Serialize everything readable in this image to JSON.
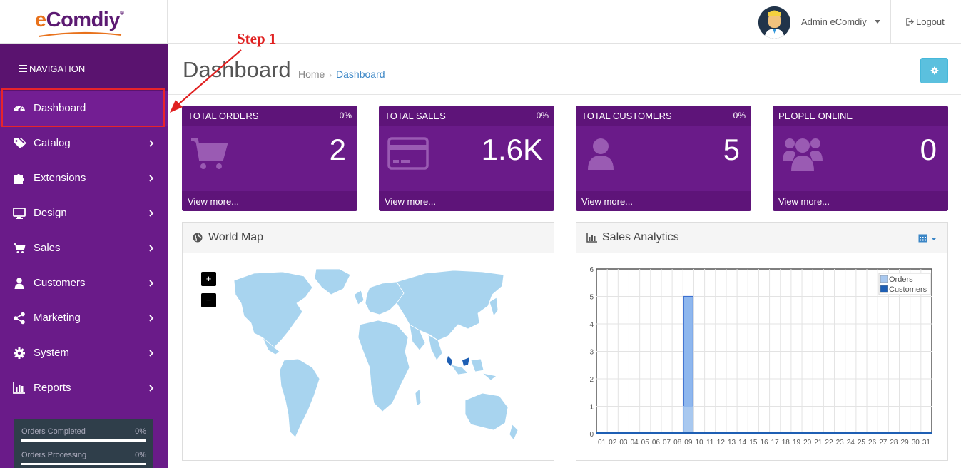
{
  "header": {
    "logo_e": "e",
    "logo_rest": "Comdiy",
    "logo_reg": "®",
    "user_name": "Admin eComdiy",
    "logout_label": "Logout"
  },
  "sidebar": {
    "nav_title": "NAVIGATION",
    "items": [
      {
        "label": "Dashboard",
        "icon": "dashboard-icon",
        "active": true
      },
      {
        "label": "Catalog",
        "icon": "tags-icon"
      },
      {
        "label": "Extensions",
        "icon": "puzzle-icon"
      },
      {
        "label": "Design",
        "icon": "monitor-icon"
      },
      {
        "label": "Sales",
        "icon": "cart-icon"
      },
      {
        "label": "Customers",
        "icon": "user-icon"
      },
      {
        "label": "Marketing",
        "icon": "share-icon"
      },
      {
        "label": "System",
        "icon": "cog-icon"
      },
      {
        "label": "Reports",
        "icon": "bar-chart-icon"
      }
    ],
    "stats": [
      {
        "label": "Orders Completed",
        "value": "0%"
      },
      {
        "label": "Orders Processing",
        "value": "0%"
      }
    ]
  },
  "main": {
    "title": "Dashboard",
    "breadcrumb": {
      "home": "Home",
      "sep": "›",
      "current": "Dashboard"
    },
    "tiles": [
      {
        "title": "TOTAL ORDERS",
        "pct": "0%",
        "value": "2",
        "more": "View more...",
        "icon": "cart-icon"
      },
      {
        "title": "TOTAL SALES",
        "pct": "0%",
        "value": "1.6K",
        "more": "View more...",
        "icon": "credit-card-icon"
      },
      {
        "title": "TOTAL CUSTOMERS",
        "pct": "0%",
        "value": "5",
        "more": "View more...",
        "icon": "user-icon"
      },
      {
        "title": "PEOPLE ONLINE",
        "pct": "",
        "value": "0",
        "more": "View more...",
        "icon": "users-icon"
      }
    ],
    "map_panel": {
      "title": "World Map",
      "zoom_in": "+",
      "zoom_out": "−"
    },
    "analytics_panel": {
      "title": "Sales Analytics"
    }
  },
  "annotation": {
    "label": "Step 1"
  },
  "colors": {
    "sidebar": "#6a1b89",
    "tile": "#6a1b89",
    "accent": "#5bc0de",
    "map": "#a8d4ef",
    "orders": "#a8c8ef",
    "customers": "#1e5fb4"
  },
  "chart_data": {
    "type": "bar",
    "categories": [
      "01",
      "02",
      "03",
      "04",
      "05",
      "06",
      "07",
      "08",
      "09",
      "10",
      "11",
      "12",
      "13",
      "14",
      "15",
      "16",
      "17",
      "18",
      "19",
      "20",
      "21",
      "22",
      "23",
      "24",
      "25",
      "26",
      "27",
      "28",
      "29",
      "30",
      "31"
    ],
    "series": [
      {
        "name": "Orders",
        "values": [
          0,
          0,
          0,
          0,
          0,
          0,
          0,
          0,
          1,
          0,
          0,
          0,
          0,
          0,
          0,
          0,
          0,
          0,
          0,
          0,
          0,
          0,
          0,
          0,
          0,
          0,
          0,
          0,
          0,
          0,
          0
        ]
      },
      {
        "name": "Customers",
        "values": [
          0,
          0,
          0,
          0,
          0,
          0,
          0,
          0,
          5,
          0,
          0,
          0,
          0,
          0,
          0,
          0,
          0,
          0,
          0,
          0,
          0,
          0,
          0,
          0,
          0,
          0,
          0,
          0,
          0,
          0,
          0
        ]
      }
    ],
    "yticks": [
      "0",
      "1",
      "2",
      "3",
      "4",
      "5",
      "6"
    ],
    "ylim": [
      0,
      6
    ],
    "legend": "top-right",
    "grid": true
  }
}
